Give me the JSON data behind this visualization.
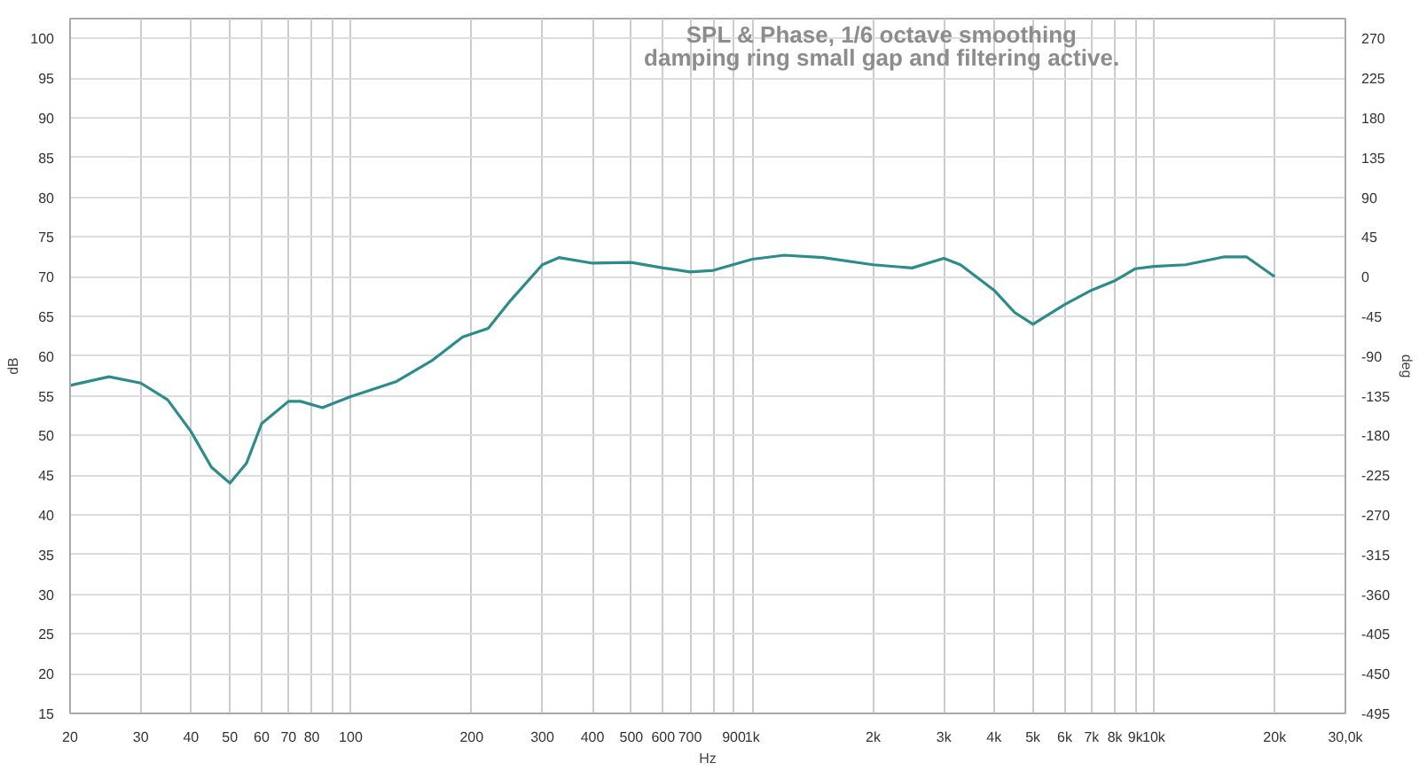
{
  "chart_data": {
    "type": "line",
    "title": "SPL & Phase, 1/6 octave smoothing",
    "subtitle": "damping ring small gap and filtering active.",
    "xlabel": "Hz",
    "ylabel": "dB",
    "y2label": "deg",
    "log": "x",
    "grid": true,
    "x": [
      20,
      25,
      30,
      35,
      40,
      45,
      50,
      55,
      60,
      70,
      75,
      85,
      100,
      130,
      160,
      190,
      220,
      250,
      300,
      330,
      400,
      500,
      600,
      700,
      800,
      1000,
      1200,
      1500,
      2000,
      2500,
      3000,
      3300,
      4000,
      4500,
      5000,
      6000,
      7000,
      8000,
      9000,
      10000,
      12000,
      15000,
      17000,
      20000
    ],
    "series": [
      {
        "color": "#2e8b8b",
        "values": [
          56.3,
          57.4,
          56.6,
          54.5,
          50.5,
          46,
          44.0,
          46.5,
          51.5,
          54.3,
          54.3,
          53.5,
          54.9,
          56.8,
          59.5,
          62.4,
          63.5,
          67,
          71.5,
          72.4,
          71.7,
          71.8,
          71.1,
          70.6,
          70.8,
          72.2,
          72.7,
          72.4,
          71.5,
          71.1,
          72.3,
          71.5,
          68.3,
          65.5,
          64.0,
          66.5,
          68.3,
          69.5,
          71.0,
          71.3,
          71.5,
          72.5,
          72.5,
          70.0
        ]
      }
    ],
    "xlim": [
      20,
      30000
    ],
    "xticks": [
      20,
      30,
      40,
      50,
      60,
      70,
      80,
      {
        "value": 90,
        "label": null
      },
      100,
      200,
      300,
      400,
      500,
      600,
      700,
      {
        "value": 800,
        "label": null
      },
      900,
      {
        "value": 1000,
        "label": "1k"
      },
      {
        "value": 2000,
        "label": "2k"
      },
      {
        "value": 3000,
        "label": "3k"
      },
      {
        "value": 4000,
        "label": "4k"
      },
      {
        "value": 5000,
        "label": "5k"
      },
      {
        "value": 6000,
        "label": "6k"
      },
      {
        "value": 7000,
        "label": "7k"
      },
      {
        "value": 8000,
        "label": "8k"
      },
      {
        "value": 9000,
        "label": "9k"
      },
      {
        "value": 10000,
        "label": "10k"
      },
      {
        "value": 20000,
        "label": "20k"
      },
      {
        "value": 30000,
        "label": "30,0k"
      }
    ],
    "ylim": [
      15,
      102.5
    ],
    "yticks": [
      15,
      20,
      25,
      30,
      35,
      40,
      45,
      50,
      55,
      60,
      65,
      70,
      75,
      80,
      85,
      90,
      95,
      100
    ],
    "y2lim": [
      -495,
      292.5
    ],
    "y2ticks": [
      -495,
      -450,
      -405,
      -360,
      -315,
      -270,
      -225,
      -180,
      -135,
      -90,
      -45,
      0,
      45,
      90,
      135,
      180,
      225,
      270
    ]
  }
}
